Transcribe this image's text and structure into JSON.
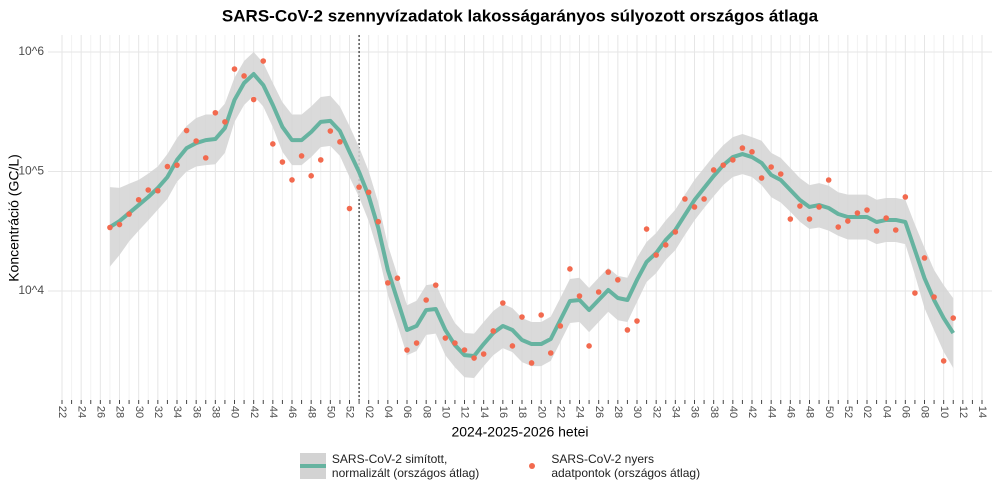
{
  "chart_data": {
    "type": "line",
    "title": "SARS-CoV-2 szennyvízadatok lakosságarányos súlyozott országos átlaga",
    "x_label": "2024-2025-2026 hetei",
    "y_label": "Koncentráció (GC/L)",
    "log_y": true,
    "grid": true,
    "legend": "bottom",
    "vline": 31,
    "ylim": [
      1225,
      1387000
    ],
    "yticks": [
      {
        "value": 10000,
        "label": "10^4"
      },
      {
        "value": 100000,
        "label": "10^5"
      },
      {
        "value": 1000000,
        "label": "10^6"
      }
    ],
    "categories": [
      "22",
      null,
      "24",
      null,
      "26",
      null,
      "28",
      null,
      "30",
      null,
      "32",
      null,
      "34",
      null,
      "36",
      null,
      "38",
      null,
      "40",
      null,
      "42",
      null,
      "44",
      null,
      "46",
      null,
      "48",
      null,
      "50",
      null,
      "52",
      null,
      "02",
      null,
      "04",
      null,
      "06",
      null,
      "08",
      null,
      "10",
      null,
      "12",
      null,
      "14",
      null,
      "16",
      null,
      "18",
      null,
      "20",
      null,
      "22",
      null,
      "24",
      null,
      "26",
      null,
      "28",
      null,
      "30",
      null,
      "32",
      null,
      "34",
      null,
      "36",
      null,
      "38",
      null,
      "40",
      null,
      "42",
      null,
      "44",
      null,
      "46",
      null,
      "48",
      null,
      "50",
      null,
      "52",
      null,
      "02",
      null,
      "04",
      null,
      "06",
      null,
      "08",
      null,
      "10",
      null,
      "12",
      null,
      "14"
    ],
    "series": [
      {
        "name": "SARS-CoV-2 simított,\n normalizált (országos átlag)",
        "type": "line",
        "color": "#66b3a0",
        "band_color": "#d3d3d3",
        "values": [
          null,
          null,
          null,
          null,
          null,
          34300,
          38500,
          44900,
          52400,
          61200,
          72800,
          89900,
          125000,
          157000,
          173000,
          183000,
          187000,
          231000,
          397000,
          550000,
          654000,
          529000,
          360000,
          236000,
          183000,
          183000,
          214000,
          260000,
          265000,
          218000,
          146000,
          99000,
          62400,
          33700,
          15000,
          8410,
          4720,
          5100,
          6930,
          7070,
          4720,
          3530,
          2910,
          2860,
          3600,
          4450,
          5100,
          4720,
          3890,
          3600,
          3600,
          3970,
          5720,
          8250,
          8410,
          6930,
          8410,
          10200,
          8740,
          8410,
          12400,
          17500,
          20800,
          26700,
          32400,
          43300,
          57700,
          72800,
          91700,
          113000,
          132000,
          140000,
          132000,
          118000,
          93500,
          84900,
          70000,
          57700,
          50500,
          52400,
          49500,
          44100,
          41600,
          41600,
          41600,
          37800,
          39300,
          39300,
          37800,
          22000,
          12800,
          8410,
          5940,
          4450,
          null,
          null,
          null
        ],
        "upper": [
          null,
          null,
          null,
          null,
          null,
          74000,
          73000,
          79000,
          85000,
          96000,
          110000,
          140000,
          190000,
          240000,
          280000,
          300000,
          300000,
          370000,
          610000,
          840000,
          1000000,
          810000,
          550000,
          380000,
          300000,
          300000,
          350000,
          420000,
          430000,
          350000,
          240000,
          160000,
          101000,
          55000,
          24300,
          13600,
          7600,
          8300,
          11200,
          11500,
          7600,
          5400,
          4450,
          4400,
          5500,
          6800,
          7800,
          7200,
          5950,
          5500,
          5500,
          6100,
          8750,
          12600,
          12900,
          10600,
          12900,
          15600,
          13400,
          12900,
          19000,
          25700,
          30600,
          39000,
          48000,
          64000,
          85000,
          107000,
          135000,
          166000,
          194000,
          206000,
          194000,
          181000,
          143000,
          130000,
          107000,
          88000,
          77000,
          80000,
          76000,
          67000,
          64000,
          64000,
          64000,
          58000,
          60000,
          60000,
          58000,
          36000,
          23000,
          15000,
          11200,
          8700,
          null,
          null,
          null
        ],
        "lower": [
          null,
          null,
          null,
          null,
          null,
          16000,
          20000,
          26000,
          32000,
          39000,
          48000,
          59000,
          82000,
          100000,
          110000,
          113000,
          115000,
          143000,
          260000,
          360000,
          430000,
          350000,
          235000,
          146000,
          113000,
          113000,
          132000,
          160000,
          164000,
          135000,
          90000,
          61000,
          38500,
          20800,
          9300,
          5200,
          2900,
          3150,
          4300,
          4400,
          2900,
          2300,
          1900,
          1870,
          2350,
          2900,
          3330,
          3080,
          2540,
          2350,
          2350,
          2600,
          3740,
          5400,
          5500,
          4530,
          5500,
          6700,
          5700,
          5500,
          8100,
          11900,
          14100,
          18200,
          22000,
          29500,
          39000,
          49500,
          62000,
          77000,
          90000,
          95000,
          90000,
          77000,
          61000,
          55000,
          46000,
          38000,
          33000,
          34000,
          32000,
          29000,
          27000,
          27000,
          27000,
          24700,
          25700,
          25700,
          24700,
          13600,
          7200,
          4700,
          3100,
          2270,
          null,
          null,
          null
        ]
      },
      {
        "name": "SARS-CoV-2 nyers\n adatpontok (országos átlag)",
        "type": "scatter",
        "color": "#f26a4f",
        "values": [
          null,
          null,
          null,
          null,
          null,
          34000,
          36000,
          44000,
          58000,
          70000,
          69000,
          110000,
          113000,
          220000,
          180000,
          130000,
          310000,
          260000,
          720000,
          630000,
          400000,
          840000,
          170000,
          120000,
          85000,
          135000,
          92000,
          125000,
          218000,
          177000,
          49000,
          74000,
          67000,
          38000,
          11700,
          12800,
          3210,
          3670,
          8410,
          11200,
          4040,
          3670,
          3210,
          2750,
          2970,
          4630,
          7940,
          3470,
          6060,
          2500,
          6300,
          3030,
          5100,
          15300,
          9080,
          3470,
          9810,
          14400,
          12400,
          4720,
          5610,
          33000,
          20000,
          24300,
          31200,
          58900,
          50500,
          58900,
          103000,
          113000,
          125000,
          157000,
          146000,
          88200,
          109000,
          95300,
          40000,
          51400,
          40000,
          50500,
          84900,
          34300,
          38500,
          44900,
          47600,
          31800,
          40800,
          32400,
          61200,
          9620,
          18900,
          8910,
          2600,
          5940,
          null,
          null,
          null
        ]
      }
    ]
  }
}
